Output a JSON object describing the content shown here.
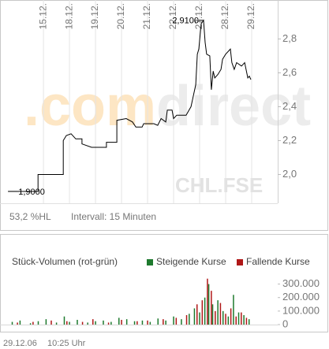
{
  "chart_data": [
    {
      "type": "line",
      "watermark": [
        ".com",
        "direct"
      ],
      "symbol": "CHL.FSE",
      "range_label": "53,2 %HL",
      "interval": "Intervall: 15 Minuten",
      "xlim": [
        -0.67,
        10
      ],
      "xticks": [
        {
          "value": 1,
          "label": "15.12."
        },
        {
          "value": 2,
          "label": "18.12."
        },
        {
          "value": 3,
          "label": "19.12."
        },
        {
          "value": 4,
          "label": "20.12."
        },
        {
          "value": 5,
          "label": "21.12."
        },
        {
          "value": 6,
          "label": "22.12."
        },
        {
          "value": 7,
          "label": "27.12."
        },
        {
          "value": 8,
          "label": "28.12."
        },
        {
          "value": 9,
          "label": "29.12."
        }
      ],
      "ylim": [
        1.83,
        3.03
      ],
      "yticks": [
        {
          "value": 2.0,
          "label": "2,0"
        },
        {
          "value": 2.2,
          "label": "2,2"
        },
        {
          "value": 2.4,
          "label": "2,4"
        },
        {
          "value": 2.6,
          "label": "2,6"
        },
        {
          "value": 2.8,
          "label": "2,8"
        }
      ],
      "grid": true,
      "color": "#000000",
      "x": [
        -0.36,
        0.79,
        0.79,
        1.76,
        1.76,
        1.88,
        2.06,
        2.24,
        2.48,
        2.48,
        2.85,
        3.42,
        3.42,
        3.82,
        3.82,
        4.18,
        4.42,
        4.55,
        4.79,
        4.85,
        5.24,
        5.39,
        5.52,
        5.7,
        5.76,
        5.94,
        6.0,
        6.12,
        6.48,
        6.67,
        6.85,
        6.91,
        6.97,
        7.06,
        7.15,
        7.21,
        7.27,
        7.39,
        7.45,
        7.52,
        7.58,
        7.7,
        7.82,
        7.88,
        8.0,
        8.18,
        8.24,
        8.33,
        8.42,
        8.61,
        8.73,
        8.85,
        8.91,
        8.97
      ],
      "values": [
        1.9,
        1.9,
        2.0,
        2.0,
        2.2,
        2.23,
        2.24,
        2.21,
        2.21,
        2.18,
        2.16,
        2.16,
        2.19,
        2.19,
        2.32,
        2.33,
        2.31,
        2.28,
        2.28,
        2.3,
        2.3,
        2.29,
        2.33,
        2.31,
        2.38,
        2.38,
        2.33,
        2.35,
        2.35,
        2.4,
        2.53,
        2.71,
        2.74,
        2.89,
        2.91,
        2.78,
        2.71,
        2.7,
        2.5,
        2.61,
        2.57,
        2.59,
        2.62,
        2.68,
        2.71,
        2.74,
        2.66,
        2.62,
        2.66,
        2.64,
        2.66,
        2.57,
        2.58,
        2.56
      ],
      "annotations": [
        {
          "x": -0.36,
          "value": 1.9,
          "label": "1,9000",
          "side": "right"
        },
        {
          "x": 7.15,
          "value": 2.91,
          "label": "2,9100",
          "side": "left"
        }
      ]
    },
    {
      "type": "bar",
      "title": "Stück-Volumen (rot-grün)",
      "xlim": [
        -0.67,
        10
      ],
      "ylim": [
        0,
        350000
      ],
      "yticks": [
        0,
        {
          "value": 100000,
          "label": "100.000"
        },
        {
          "value": 200000,
          "label": "200.000"
        },
        {
          "value": 300000,
          "label": "300.000"
        }
      ],
      "series": [
        {
          "name": "Steigende Kurse",
          "color": "#1e7a2e",
          "x": [
            -0.2,
            0.1,
            0.5,
            0.8,
            1.1,
            1.5,
            1.8,
            2.0,
            2.3,
            2.7,
            3.0,
            3.3,
            3.6,
            3.9,
            4.2,
            4.5,
            4.8,
            5.1,
            5.4,
            5.7,
            6.0,
            6.3,
            6.6,
            6.8,
            7.0,
            7.2,
            7.35,
            7.5,
            7.7,
            7.9,
            8.1,
            8.3,
            8.5,
            8.7,
            8.9
          ],
          "values": [
            20000,
            30000,
            10000,
            25000,
            40000,
            15000,
            60000,
            20000,
            35000,
            15000,
            25000,
            30000,
            20000,
            50000,
            40000,
            25000,
            30000,
            20000,
            45000,
            30000,
            60000,
            40000,
            80000,
            120000,
            90000,
            200000,
            300000,
            150000,
            180000,
            100000,
            60000,
            220000,
            90000,
            70000,
            40000
          ]
        },
        {
          "name": "Fallende Kurse",
          "color": "#b01818",
          "x": [
            0.0,
            0.6,
            1.3,
            1.9,
            2.5,
            2.9,
            3.5,
            4.0,
            4.6,
            5.0,
            5.6,
            6.1,
            6.5,
            6.9,
            7.1,
            7.3,
            7.45,
            7.6,
            7.8,
            8.0,
            8.2,
            8.4,
            8.6,
            8.8
          ],
          "values": [
            15000,
            20000,
            30000,
            25000,
            20000,
            40000,
            15000,
            35000,
            25000,
            30000,
            40000,
            50000,
            70000,
            150000,
            180000,
            340000,
            250000,
            100000,
            160000,
            80000,
            120000,
            60000,
            90000,
            50000
          ]
        }
      ]
    }
  ],
  "footer": {
    "date": "29.12.06",
    "time": "10:25 Uhr"
  }
}
